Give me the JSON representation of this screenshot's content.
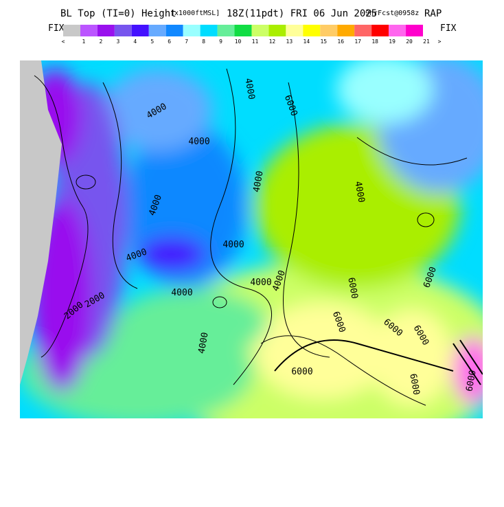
{
  "header": {
    "title": "BL Top (TI=0) Height",
    "units": "[x1000ftMSL]",
    "time": "18Z(11pdt) FRI 06 Jun 2025",
    "forecast": "9hrFcst@0958z",
    "model": "RAP"
  },
  "colorbar": {
    "left_label": "FIX",
    "right_label": "FIX",
    "colors": [
      "#c8c8c8",
      "#bb55ff",
      "#9911ee",
      "#7755ee",
      "#4411ff",
      "#66aaff",
      "#1188ff",
      "#99ffff",
      "#00ddff",
      "#66ee99",
      "#11dd44",
      "#ccff66",
      "#aaee00",
      "#ffff99",
      "#ffff00",
      "#ffcc66",
      "#ffaa00",
      "#ff6666",
      "#ff0000",
      "#ff66ee",
      "#ff00cc"
    ],
    "ticks": [
      "<",
      "1",
      "2",
      "3",
      "4",
      "5",
      "6",
      "7",
      "8",
      "9",
      "10",
      "11",
      "12",
      "13",
      "14",
      "15",
      "16",
      "17",
      "18",
      "19",
      "20",
      "21",
      ">"
    ]
  },
  "map": {
    "contour_labels": [
      "4000",
      "4000",
      "4000",
      "6000",
      "4000",
      "4000",
      "4000",
      "2000",
      "4000",
      "4000",
      "4000",
      "2000",
      "4000",
      "6000",
      "6000",
      "6000",
      "6000",
      "6000",
      "4000",
      "4000",
      "6000",
      "6000",
      "6000"
    ]
  }
}
